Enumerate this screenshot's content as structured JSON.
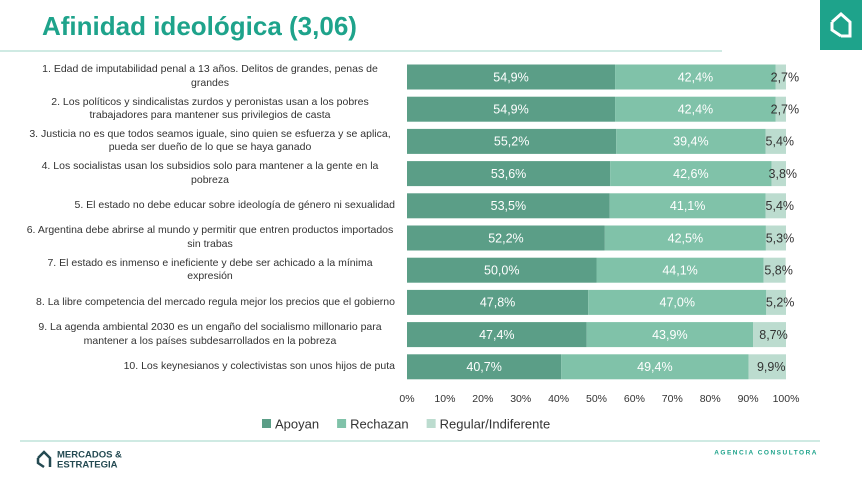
{
  "chart_data": {
    "type": "stacked_barh",
    "title": "Afinidad ideológica (3,06)",
    "categories": [
      "1. Edad de imputabilidad penal a 13 años. Delitos de grandes, penas de grandes",
      "2. Los políticos y sindicalistas zurdos y peronistas usan a los pobres trabajadores para mantener sus privilegios de casta",
      "3. Justicia no es que todos seamos iguale, sino quien se esfuerza y se aplica, pueda ser dueño de lo que se haya ganado",
      "4. Los socialistas usan los subsidios solo para mantener a la gente en la pobreza",
      "5. El estado no debe educar sobre ideología de género ni sexualidad",
      "6. Argentina debe abrirse al mundo y permitir que entren productos importados sin trabas",
      "7. El estado es inmenso e ineficiente y debe ser achicado a la mínima expresión",
      "8. La libre competencia del mercado regula mejor los precios que el gobierno",
      "9. La agenda ambiental 2030 es un engaño del socialismo millonario para mantener a los países subdesarrollados en la pobreza",
      "10. Los keynesianos y colectivistas son unos hijos de puta"
    ],
    "series": [
      {
        "name": "Apoyan",
        "color": "#5b9e87",
        "label_color": "#ffffff",
        "values": [
          54.9,
          54.9,
          55.2,
          53.6,
          53.5,
          52.2,
          50.0,
          47.8,
          47.4,
          40.7
        ],
        "value_labels": [
          "54,9%",
          "54,9%",
          "55,2%",
          "53,6%",
          "53,5%",
          "52,2%",
          "50,0%",
          "47,8%",
          "47,4%",
          "40,7%"
        ]
      },
      {
        "name": "Rechazan",
        "color": "#80c2a9",
        "label_color": "#ffffff",
        "values": [
          42.4,
          42.4,
          39.4,
          42.6,
          41.1,
          42.5,
          44.1,
          47.0,
          43.9,
          49.4
        ],
        "value_labels": [
          "42,4%",
          "42,4%",
          "39,4%",
          "42,6%",
          "41,1%",
          "42,5%",
          "44,1%",
          "47,0%",
          "43,9%",
          "49,4%"
        ]
      },
      {
        "name": "Regular/Indiferente",
        "color": "#bcdccf",
        "label_color": "#333333",
        "values": [
          2.7,
          2.7,
          5.4,
          3.8,
          5.4,
          5.3,
          5.8,
          5.2,
          8.7,
          9.9
        ],
        "value_labels": [
          "2,7%",
          "2,7%",
          "5,4%",
          "3,8%",
          "5,4%",
          "5,3%",
          "5,8%",
          "5,2%",
          "8,7%",
          "9,9%"
        ]
      }
    ],
    "xlim": [
      0,
      100
    ],
    "xticks": [
      {
        "value": 0,
        "label": "0%"
      },
      {
        "value": 10,
        "label": "10%"
      },
      {
        "value": 20,
        "label": "20%"
      },
      {
        "value": 30,
        "label": "30%"
      },
      {
        "value": 40,
        "label": "40%"
      },
      {
        "value": 50,
        "label": "50%"
      },
      {
        "value": 60,
        "label": "60%"
      },
      {
        "value": 70,
        "label": "70%"
      },
      {
        "value": 80,
        "label": "80%"
      },
      {
        "value": 90,
        "label": "90%"
      },
      {
        "value": 100,
        "label": "100%"
      }
    ],
    "legend": "bottom"
  },
  "footer": {
    "logo": [
      "MERCADOS &",
      "ESTRATEGIA"
    ],
    "tagline": "AGENCIA CONSULTORA"
  }
}
